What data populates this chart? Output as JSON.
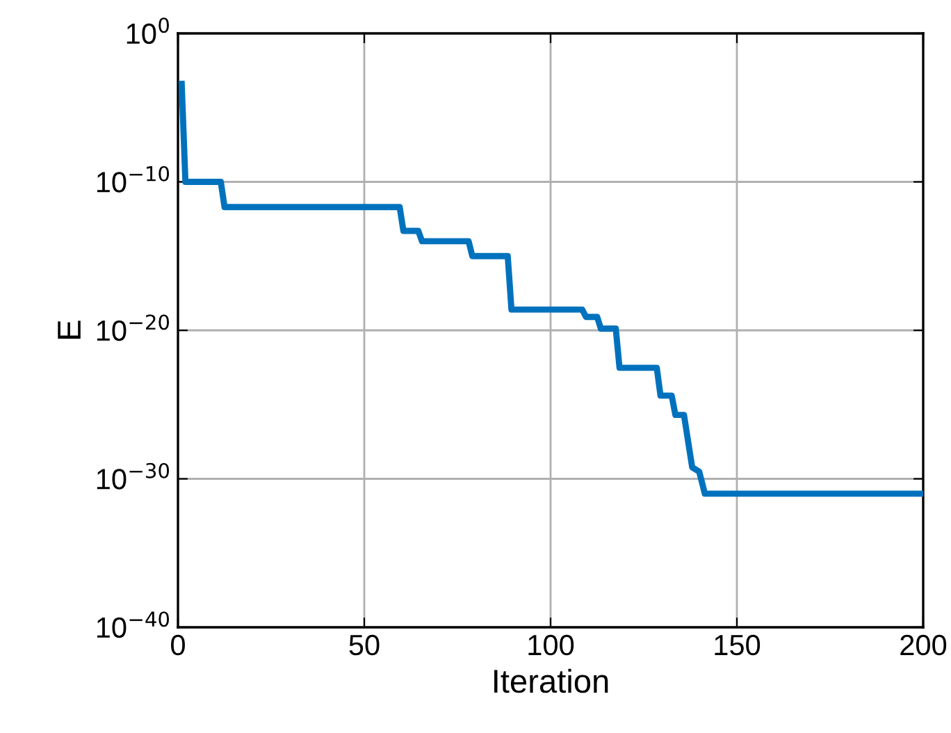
{
  "chart_data": {
    "type": "line",
    "xlabel": "Iteration",
    "ylabel": "E",
    "log": "y",
    "grid": true,
    "marker": "none",
    "line_style": "solid",
    "xlim": [
      0,
      200
    ],
    "xticks": [
      0,
      50,
      100,
      150,
      200
    ],
    "ylim": [
      1e-40,
      1
    ],
    "yticks": [
      {
        "value": 1e-40,
        "label": "10$^{−40}$"
      },
      {
        "value": 1e-30,
        "label": "10$^{−30}$"
      },
      {
        "value": 1e-20,
        "label": "10$^{−20}$"
      },
      {
        "value": 1e-10,
        "label": "10$^{−10}$"
      },
      {
        "value": 1,
        "label": "10$^{0}$"
      }
    ],
    "series": [
      {
        "color": "#0072bd",
        "x": [
          1,
          2,
          11.5,
          12.5,
          59.5,
          60.5,
          64.5,
          65.5,
          78,
          79,
          88.5,
          89.5,
          108.5,
          109.5,
          112.5,
          113.5,
          117.5,
          118.5,
          128.5,
          129.5,
          132.5,
          133.5,
          135.8,
          138,
          139.9,
          141.4,
          200
        ],
        "values": [
          0.0004,
          1e-10,
          1e-10,
          2e-12,
          2e-12,
          5e-14,
          5e-14,
          1e-14,
          1e-14,
          1e-15,
          1e-15,
          2.5e-19,
          2.5e-19,
          8e-20,
          8e-20,
          1.3e-20,
          1.3e-20,
          3e-23,
          3e-23,
          4e-25,
          4e-25,
          2e-26,
          2e-26,
          6e-30,
          3e-30,
          1e-31,
          1e-31
        ]
      }
    ]
  }
}
